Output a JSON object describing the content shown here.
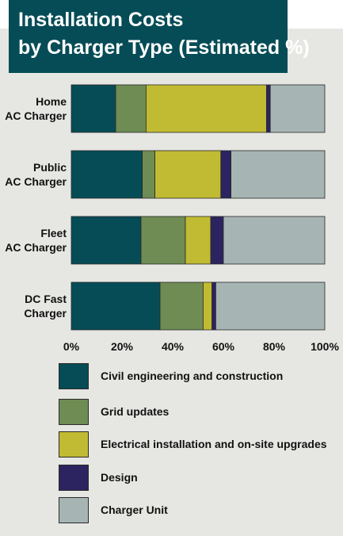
{
  "chart_data": {
    "type": "bar",
    "orientation": "horizontal",
    "stacked": true,
    "title": "Installation Costs by Charger Type (Estimated %)",
    "title_lines": [
      "Installation Costs",
      "by Charger Type (Estimated %)"
    ],
    "categories": [
      [
        "Home",
        "AC Charger"
      ],
      [
        "Public",
        "AC Charger"
      ],
      [
        "Fleet",
        "AC Charger"
      ],
      [
        "DC Fast",
        "Charger"
      ]
    ],
    "xlim": [
      0,
      100
    ],
    "x_ticks": [
      0,
      20,
      40,
      60,
      80,
      100
    ],
    "x_tick_labels": [
      "0%",
      "20%",
      "40%",
      "60%",
      "80%",
      "100%"
    ],
    "grid": false,
    "legend_position": "bottom",
    "series": [
      {
        "name": "Civil engineering and construction",
        "color": "#064c56",
        "values": [
          17.5,
          28,
          27.5,
          35
        ]
      },
      {
        "name": "Grid updates",
        "color": "#6e8c53",
        "values": [
          12,
          5,
          17.5,
          17
        ]
      },
      {
        "name": "Electrical installation and on-site upgrades",
        "color": "#c1bb33",
        "values": [
          47.5,
          26,
          10,
          3.5
        ]
      },
      {
        "name": "Design",
        "color": "#2b2460",
        "values": [
          1.5,
          4,
          5,
          1.5
        ]
      },
      {
        "name": "Charger Unit",
        "color": "#a6b5b3",
        "values": [
          21.5,
          37,
          40,
          43
        ]
      }
    ]
  }
}
